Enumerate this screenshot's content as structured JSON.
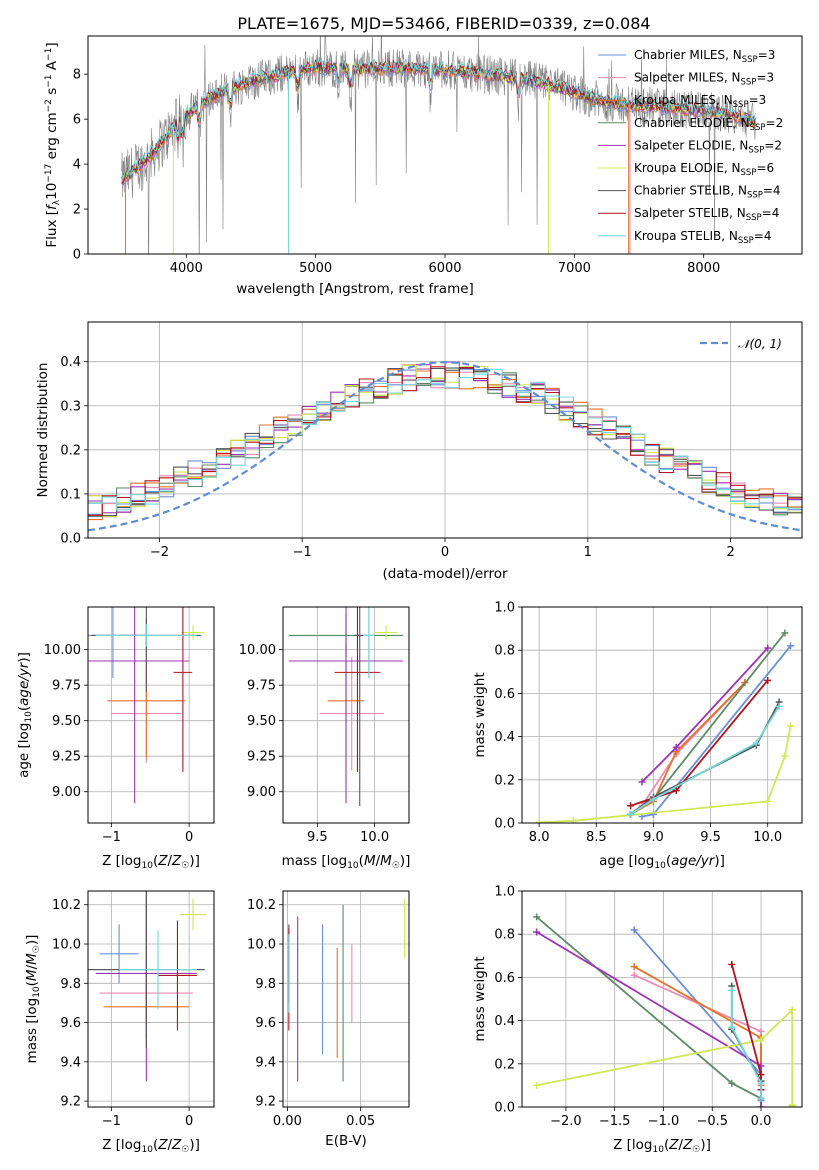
{
  "figure": {
    "title": "PLATE=1675, MJD=53466, FIBERID=0339, z=0.084"
  },
  "colors": {
    "Chabrier MILES": "#6a8fd6",
    "Salpeter MILES": "#e98cb5",
    "Kroupa MILES": "#e8712b",
    "Chabrier ELODIE": "#5f8a66",
    "Salpeter ELODIE": "#9c35b4",
    "Kroupa ELODIE": "#cfe858",
    "Chabrier STELIB": "#555555",
    "Salpeter STELIB": "#b0141e",
    "Kroupa STELIB": "#74d6d8",
    "data": "#808080",
    "normal": "#5f8dd3"
  },
  "chart_data": [
    {
      "id": "spectrum",
      "type": "line",
      "title": "PLATE=1675, MJD=53466, FIBERID=0339, z=0.084",
      "xlabel": "wavelength [Angstrom, rest frame]",
      "ylabel": "Flux [f_λ 10^-17 erg cm^-2 s^-1 A^-1]",
      "xlim": [
        3240,
        8760
      ],
      "ylim": [
        0,
        9.7
      ],
      "xticks": [
        4000,
        5000,
        6000,
        7000,
        8000
      ],
      "yticks": [
        0,
        2,
        4,
        6,
        8
      ],
      "legend_position": "upper-right",
      "legend": [
        {
          "label": "Chabrier MILES",
          "nssp": "3"
        },
        {
          "label": "Salpeter MILES",
          "nssp": "3"
        },
        {
          "label": "Kroupa MILES",
          "nssp": "3"
        },
        {
          "label": "Chabrier ELODIE",
          "nssp": "2"
        },
        {
          "label": "Salpeter ELODIE",
          "nssp": "2"
        },
        {
          "label": "Kroupa ELODIE",
          "nssp": "6"
        },
        {
          "label": "Chabrier STELIB",
          "nssp": "4"
        },
        {
          "label": "Salpeter STELIB",
          "nssp": "4"
        },
        {
          "label": "Kroupa STELIB",
          "nssp": "4"
        }
      ],
      "continuum": {
        "x": [
          3500,
          3700,
          3900,
          4000,
          4200,
          4500,
          4800,
          5000,
          5300,
          5600,
          6000,
          6300,
          6600,
          6900,
          7200,
          7500,
          7800,
          8100,
          8400
        ],
        "y": [
          3.3,
          4.2,
          5.6,
          6.2,
          7.0,
          7.7,
          8.1,
          8.3,
          8.2,
          8.3,
          8.2,
          8.0,
          7.8,
          7.4,
          6.8,
          6.6,
          6.5,
          6.3,
          5.9
        ]
      },
      "x_start": 3500,
      "x_end": 8400
    },
    {
      "id": "residuals",
      "type": "bar",
      "xlabel": "(data-model)/error",
      "ylabel": "Normed distribution",
      "xlim": [
        -2.5,
        2.5
      ],
      "ylim": [
        0,
        0.49
      ],
      "xticks": [
        -2,
        -1,
        0,
        1,
        2
      ],
      "yticks": [
        0.0,
        0.1,
        0.2,
        0.3,
        0.4
      ],
      "bin_width": 0.1,
      "bin_start": -2.5,
      "legend_label": "𝒩(0, 1)",
      "legend_position": "upper-right"
    },
    {
      "id": "age-vs-Z",
      "type": "scatter",
      "xlabel": "Z [log10(Z/Z☉)]",
      "ylabel": "age [log10(age/yr)]",
      "xlim": [
        -1.3,
        0.32
      ],
      "ylim": [
        8.78,
        10.3
      ],
      "xticks": [
        -1,
        0
      ],
      "yticks": [
        9.0,
        9.25,
        9.5,
        9.75,
        10.0
      ],
      "points": [
        {
          "series": "Chabrier MILES",
          "x": -0.98,
          "y": 10.1,
          "xerr": 0.45,
          "yerr": 0.3
        },
        {
          "series": "Salpeter MILES",
          "x": -0.55,
          "y": 9.55,
          "xerr": 0.45,
          "yerr": 0.35
        },
        {
          "series": "Kroupa MILES",
          "x": -0.55,
          "y": 9.64,
          "xerr": 0.5,
          "yerr": 0.4
        },
        {
          "series": "Chabrier ELODIE",
          "x": -0.55,
          "y": 10.1,
          "xerr": 0.7,
          "yerr": 0.12
        },
        {
          "series": "Salpeter ELODIE",
          "x": -0.7,
          "y": 9.92,
          "xerr": 0.7,
          "yerr": 1.0
        },
        {
          "series": "Kroupa ELODIE",
          "x": 0.05,
          "y": 10.12,
          "xerr": 0.15,
          "yerr": 0.05
        },
        {
          "series": "Chabrier STELIB",
          "x": -0.55,
          "y": 10.1,
          "xerr": 0.7,
          "yerr": 0.4
        },
        {
          "series": "Salpeter STELIB",
          "x": -0.08,
          "y": 9.84,
          "xerr": 0.12,
          "yerr": 0.7
        },
        {
          "series": "Kroupa STELIB",
          "x": -0.55,
          "y": 10.1,
          "xerr": 0.65,
          "yerr": 0.08
        }
      ]
    },
    {
      "id": "age-vs-mass",
      "type": "scatter",
      "xlabel": "mass [log10(M/M☉)]",
      "ylabel": "",
      "xlim": [
        9.2,
        10.3
      ],
      "ylim": [
        8.78,
        10.3
      ],
      "xticks": [
        9.5,
        10.0
      ],
      "yticks": [
        9.0,
        9.25,
        9.5,
        9.75,
        10.0
      ],
      "points": [
        {
          "series": "Chabrier MILES",
          "x": 9.95,
          "y": 10.1,
          "xerr": 0.05,
          "yerr": 0.3
        },
        {
          "series": "Salpeter MILES",
          "x": 9.8,
          "y": 9.55,
          "xerr": 0.28,
          "yerr": 0.4
        },
        {
          "series": "Kroupa MILES",
          "x": 9.75,
          "y": 9.64,
          "xerr": 0.16,
          "yerr": 0.4
        },
        {
          "series": "Chabrier ELODIE",
          "x": 9.75,
          "y": 10.1,
          "xerr": 0.5,
          "yerr": 0.15
        },
        {
          "series": "Salpeter ELODIE",
          "x": 9.75,
          "y": 9.92,
          "xerr": 0.5,
          "yerr": 1.0
        },
        {
          "series": "Kroupa ELODIE",
          "x": 10.1,
          "y": 10.12,
          "xerr": 0.1,
          "yerr": 0.05
        },
        {
          "series": "Chabrier STELIB",
          "x": 9.87,
          "y": 10.1,
          "xerr": 0.05,
          "yerr": 1.2
        },
        {
          "series": "Salpeter STELIB",
          "x": 9.85,
          "y": 9.84,
          "xerr": 0.2,
          "yerr": 0.7
        },
        {
          "series": "Kroupa STELIB",
          "x": 9.95,
          "y": 10.1,
          "xerr": 0.05,
          "yerr": 0.3
        }
      ]
    },
    {
      "id": "weight-vs-age",
      "type": "line",
      "xlabel": "age [log10(age/yr)]",
      "ylabel": "mass weight",
      "xlim": [
        7.85,
        10.3
      ],
      "ylim": [
        0,
        1.0
      ],
      "xticks": [
        8.0,
        8.5,
        9.0,
        9.5,
        10.0
      ],
      "yticks": [
        0.0,
        0.2,
        0.4,
        0.6,
        0.8,
        1.0
      ],
      "series": [
        {
          "name": "Chabrier MILES",
          "x": [
            8.9,
            9.0,
            10.2
          ],
          "y": [
            0.03,
            0.04,
            0.82
          ]
        },
        {
          "name": "Salpeter MILES",
          "x": [
            8.8,
            8.9,
            9.2,
            9.8
          ],
          "y": [
            0.04,
            0.08,
            0.32,
            0.65
          ]
        },
        {
          "name": "Kroupa MILES",
          "x": [
            8.8,
            9.0,
            9.2,
            9.8
          ],
          "y": [
            0.04,
            0.1,
            0.33,
            0.65
          ]
        },
        {
          "name": "Chabrier ELODIE",
          "x": [
            8.8,
            9.0,
            10.15
          ],
          "y": [
            0.04,
            0.11,
            0.88
          ]
        },
        {
          "name": "Salpeter ELODIE",
          "x": [
            8.9,
            9.2,
            10.0
          ],
          "y": [
            0.19,
            0.35,
            0.81
          ]
        },
        {
          "name": "Kroupa ELODIE",
          "x": [
            8.0,
            8.3,
            10.0,
            10.15,
            10.2
          ],
          "y": [
            0.003,
            0.01,
            0.1,
            0.31,
            0.45
          ]
        },
        {
          "name": "Chabrier STELIB",
          "x": [
            8.8,
            9.0,
            9.9,
            10.1
          ],
          "y": [
            0.04,
            0.12,
            0.36,
            0.56
          ]
        },
        {
          "name": "Salpeter STELIB",
          "x": [
            8.8,
            9.2,
            10.0
          ],
          "y": [
            0.08,
            0.15,
            0.66
          ]
        },
        {
          "name": "Kroupa STELIB",
          "x": [
            8.8,
            9.0,
            9.9,
            10.1
          ],
          "y": [
            0.04,
            0.11,
            0.37,
            0.54
          ]
        }
      ]
    },
    {
      "id": "mass-vs-Z",
      "type": "scatter",
      "xlabel": "Z [log10(Z/Z☉)]",
      "ylabel": "mass [log10(M/M☉)]",
      "xlim": [
        -1.3,
        0.32
      ],
      "ylim": [
        9.17,
        10.27
      ],
      "xticks": [
        -1,
        0
      ],
      "yticks": [
        9.2,
        9.4,
        9.6,
        9.8,
        10.0,
        10.2
      ],
      "points": [
        {
          "series": "Chabrier MILES",
          "x": -0.9,
          "y": 9.95,
          "xerr": 0.25,
          "yerr": 0.15
        },
        {
          "series": "Salpeter MILES",
          "x": -0.55,
          "y": 9.75,
          "xerr": 0.6,
          "yerr": 0.14
        },
        {
          "series": "Kroupa MILES",
          "x": -0.55,
          "y": 9.68,
          "xerr": 0.55,
          "yerr": 0.12
        },
        {
          "series": "Chabrier ELODIE",
          "x": -0.55,
          "y": 9.87,
          "xerr": 0.75,
          "yerr": 0.35
        },
        {
          "series": "Salpeter ELODIE",
          "x": -0.55,
          "y": 9.85,
          "xerr": 0.65,
          "yerr": 0.55
        },
        {
          "series": "Kroupa ELODIE",
          "x": 0.05,
          "y": 10.15,
          "xerr": 0.17,
          "yerr": 0.08
        },
        {
          "series": "Chabrier STELIB",
          "x": -0.55,
          "y": 9.87,
          "xerr": 0.75,
          "yerr": 0.4
        },
        {
          "series": "Salpeter STELIB",
          "x": -0.15,
          "y": 9.84,
          "xerr": 0.25,
          "yerr": 0.28
        },
        {
          "series": "Kroupa STELIB",
          "x": -0.4,
          "y": 9.87,
          "xerr": 0.5,
          "yerr": 0.2
        }
      ]
    },
    {
      "id": "mass-vs-EBV",
      "type": "scatter",
      "xlabel": "E(B-V)",
      "ylabel": "",
      "xlim": [
        -0.003,
        0.083
      ],
      "ylim": [
        9.17,
        10.27
      ],
      "xticks": [
        0.0,
        0.05
      ],
      "yticks": [
        9.2,
        9.4,
        9.6,
        9.8,
        10.0,
        10.2
      ],
      "points": [
        {
          "series": "Chabrier MILES",
          "x": 0.024,
          "y": 9.77,
          "xerr": 0,
          "yerr": 0.33
        },
        {
          "series": "Salpeter MILES",
          "x": 0.044,
          "y": 9.8,
          "xerr": 0,
          "yerr": 0.2
        },
        {
          "series": "Kroupa MILES",
          "x": 0.034,
          "y": 9.7,
          "xerr": 0,
          "yerr": 0.28
        },
        {
          "series": "Chabrier ELODIE",
          "x": 0.038,
          "y": 9.75,
          "xerr": 0,
          "yerr": 0.45
        },
        {
          "series": "Salpeter ELODIE",
          "x": 0.007,
          "y": 9.72,
          "xerr": 0,
          "yerr": 0.42
        },
        {
          "series": "Kroupa ELODIE",
          "x": 0.08,
          "y": 10.08,
          "xerr": 0,
          "yerr": 0.15
        },
        {
          "series": "Chabrier STELIB",
          "x": 0.001,
          "y": 9.9,
          "xerr": 0,
          "yerr": 0.2
        },
        {
          "series": "Salpeter STELIB",
          "x": 0.001,
          "y": 9.82,
          "xerr": 0,
          "yerr": 0.26
        },
        {
          "series": "Kroupa STELIB",
          "x": 0.001,
          "y": 9.85,
          "xerr": 0,
          "yerr": 0.2
        }
      ]
    },
    {
      "id": "weight-vs-Z",
      "type": "line",
      "xlabel": "Z [log10(Z/Z☉)]",
      "ylabel": "mass weight",
      "xlim": [
        -2.45,
        0.42
      ],
      "ylim": [
        0,
        1.0
      ],
      "xticks": [
        -2.0,
        -1.5,
        -1.0,
        -0.5,
        0.0
      ],
      "yticks": [
        0.0,
        0.2,
        0.4,
        0.6,
        0.8,
        1.0
      ],
      "series": [
        {
          "name": "Chabrier MILES",
          "x": [
            -1.3,
            0.0,
            0.0
          ],
          "y": [
            0.82,
            0.15,
            0.03
          ]
        },
        {
          "name": "Salpeter MILES",
          "x": [
            -1.3,
            0.0,
            0.0,
            0.0
          ],
          "y": [
            0.61,
            0.35,
            0.08,
            0.04
          ]
        },
        {
          "name": "Kroupa MILES",
          "x": [
            -1.3,
            0.0,
            0.0,
            0.0
          ],
          "y": [
            0.65,
            0.32,
            0.1,
            0.04
          ]
        },
        {
          "name": "Chabrier ELODIE",
          "x": [
            -2.3,
            -0.3,
            0.0
          ],
          "y": [
            0.88,
            0.11,
            0.04
          ]
        },
        {
          "name": "Salpeter ELODIE",
          "x": [
            -2.3,
            0.0,
            0.0
          ],
          "y": [
            0.81,
            0.19,
            0.0
          ]
        },
        {
          "name": "Kroupa ELODIE",
          "x": [
            -2.3,
            0.0,
            0.32,
            0.32,
            0.32
          ],
          "y": [
            0.1,
            0.31,
            0.45,
            0.01,
            0.003
          ]
        },
        {
          "name": "Chabrier STELIB",
          "x": [
            -0.3,
            -0.3,
            0.0,
            0.0
          ],
          "y": [
            0.56,
            0.36,
            0.12,
            0.04
          ]
        },
        {
          "name": "Salpeter STELIB",
          "x": [
            -0.3,
            0.0,
            0.0
          ],
          "y": [
            0.66,
            0.15,
            0.08
          ]
        },
        {
          "name": "Kroupa STELIB",
          "x": [
            -0.3,
            -0.3,
            0.0,
            0.0
          ],
          "y": [
            0.54,
            0.37,
            0.11,
            0.04
          ]
        }
      ]
    }
  ]
}
